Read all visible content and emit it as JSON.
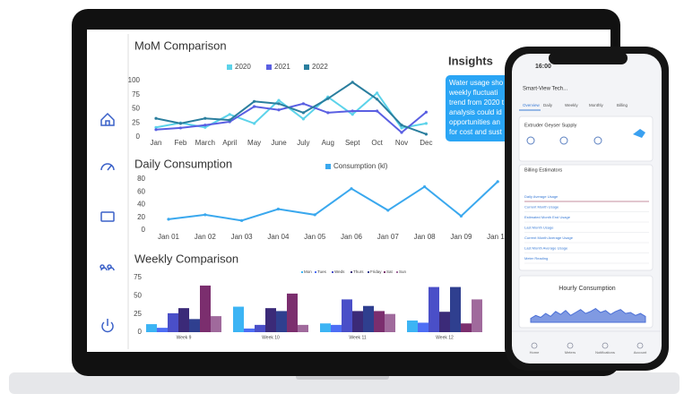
{
  "chart_data": [
    {
      "type": "line",
      "title": "MoM Comparison",
      "categories": [
        "Jan",
        "Feb",
        "March",
        "April",
        "May",
        "June",
        "July",
        "Aug",
        "Sept",
        "Oct",
        "Nov",
        "Dec"
      ],
      "series": [
        {
          "name": "2020",
          "color": "#5cd3ea",
          "values": [
            17,
            25,
            17,
            40,
            24,
            65,
            32,
            71,
            40,
            78,
            16,
            24
          ]
        },
        {
          "name": "2021",
          "color": "#5a5fe2",
          "values": [
            13,
            16,
            21,
            27,
            54,
            48,
            59,
            43,
            46,
            46,
            8,
            44
          ]
        },
        {
          "name": "2022",
          "color": "#2a7e9e",
          "values": [
            33,
            24,
            33,
            30,
            63,
            59,
            43,
            68,
            97,
            67,
            21,
            5
          ]
        }
      ],
      "ylim": [
        0,
        100
      ],
      "yticks": [
        0,
        25,
        50,
        75,
        100
      ]
    },
    {
      "type": "line",
      "title": "Daily Consumption",
      "categories": [
        "Jan 01",
        "Jan 02",
        "Jan 03",
        "Jan 04",
        "Jan 05",
        "Jan 06",
        "Jan 07",
        "Jan 08",
        "Jan 09",
        "Jan 10"
      ],
      "series": [
        {
          "name": "Consumption (kl)",
          "color": "#3aa8ee",
          "values": [
            17,
            24,
            15,
            33,
            24,
            65,
            31,
            68,
            22,
            76
          ]
        }
      ],
      "ylim": [
        0,
        80
      ],
      "yticks": [
        0,
        20,
        40,
        60,
        80
      ]
    },
    {
      "type": "bar",
      "title": "Weekly Comparison",
      "categories": [
        "Week 9",
        "Week 10",
        "Week 11",
        "Week 12"
      ],
      "series": [
        {
          "name": "Mon",
          "color": "#3cb4f4",
          "values": [
            11,
            35,
            12,
            16
          ]
        },
        {
          "name": "Tues",
          "color": "#4d6ef5",
          "values": [
            6,
            5,
            10,
            13
          ]
        },
        {
          "name": "Weds",
          "color": "#4a4fc8",
          "values": [
            26,
            10,
            45,
            62
          ]
        },
        {
          "name": "Thurs",
          "color": "#3b2a78",
          "values": [
            33,
            33,
            29,
            28
          ]
        },
        {
          "name": "Friday",
          "color": "#2f3f8f",
          "values": [
            18,
            29,
            36,
            62
          ]
        },
        {
          "name": "Sat",
          "color": "#7b2e6e",
          "values": [
            64,
            53,
            29,
            12
          ]
        },
        {
          "name": "Sun",
          "color": "#a06a9c",
          "values": [
            22,
            10,
            25,
            45
          ]
        }
      ],
      "ylim": [
        0,
        75
      ],
      "yticks": [
        0,
        25,
        50,
        75
      ]
    },
    {
      "type": "area",
      "title": "Hourly Consumption",
      "color": "#4a6fd6",
      "values": [
        20,
        35,
        25,
        45,
        30,
        55,
        40,
        60,
        35,
        50,
        65,
        45,
        55,
        70,
        50,
        60,
        40,
        55,
        65,
        45,
        50,
        35,
        45,
        30
      ],
      "ylim": [
        0,
        100
      ]
    }
  ],
  "insights": {
    "title": "Insights",
    "lines": [
      "Water usage sho",
      "weekly fluctuati",
      "trend from 2020 t",
      "analysis could id",
      "opportunities an",
      "for cost and sust"
    ]
  },
  "phone": {
    "time": "16:00",
    "header": "Smart-View Tech...",
    "tabs": [
      "Overview",
      "Daily",
      "Weekly",
      "Monthly",
      "Billing"
    ],
    "supply": "Extruder Geyser Supply",
    "billing_title": "Billing Estimators",
    "billing_rows": [
      "Daily Average Usage",
      "Current Month Usage",
      "Estimated Month End Usage",
      "Last Month Usage",
      "Current Month Average Usage",
      "Last Month Average Usage",
      "Meter Reading"
    ],
    "nav": [
      "Home",
      "Meters",
      "Notifications",
      "Account"
    ]
  }
}
